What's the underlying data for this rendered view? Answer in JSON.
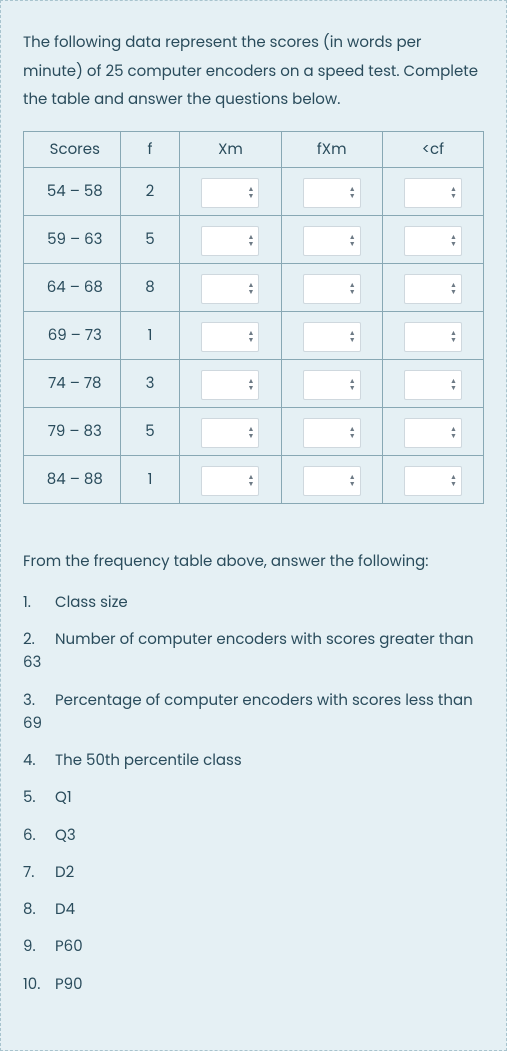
{
  "colors": {
    "page_bg": "#e5f0f4",
    "border_dashed": "#a8c4ce",
    "text": "#2a4c5c",
    "table_border": "#88a8b4",
    "stepper_bg": "#ffffff",
    "stepper_border": "#cfd8de",
    "arrow": "#6d7a85"
  },
  "intro": "The following data represent the scores (in words per minute) of 25 computer encoders on a speed test. Complete the table and answer the questions below.",
  "table": {
    "headers": {
      "scores": "Scores",
      "f": "f",
      "xm": "Xm",
      "fxm": "fXm",
      "cf": "<cf"
    },
    "rows": [
      {
        "scores": "54 – 58",
        "f": "2"
      },
      {
        "scores": "59 – 63",
        "f": "5"
      },
      {
        "scores": "64 – 68",
        "f": "8"
      },
      {
        "scores": "69 – 73",
        "f": "1"
      },
      {
        "scores": "74 – 78",
        "f": "3"
      },
      {
        "scores": "79 – 83",
        "f": "5"
      },
      {
        "scores": "84 – 88",
        "f": "1"
      }
    ]
  },
  "questions": {
    "lead": "From the frequency table above, answer the following:",
    "items": [
      {
        "n": "1.",
        "text": "Class size"
      },
      {
        "n": "2.",
        "text": "Number of computer encoders with scores greater than 63"
      },
      {
        "n": "3.",
        "text": "Percentage of computer encoders with scores less than 69"
      },
      {
        "n": "4.",
        "text": "The 50th percentile class"
      },
      {
        "n": "5.",
        "text": "Q1"
      },
      {
        "n": "6.",
        "text": "Q3"
      },
      {
        "n": "7.",
        "text": "D2"
      },
      {
        "n": "8.",
        "text": "D4"
      },
      {
        "n": "9.",
        "text": "P60"
      },
      {
        "n": "10.",
        "text": "P90"
      }
    ]
  }
}
